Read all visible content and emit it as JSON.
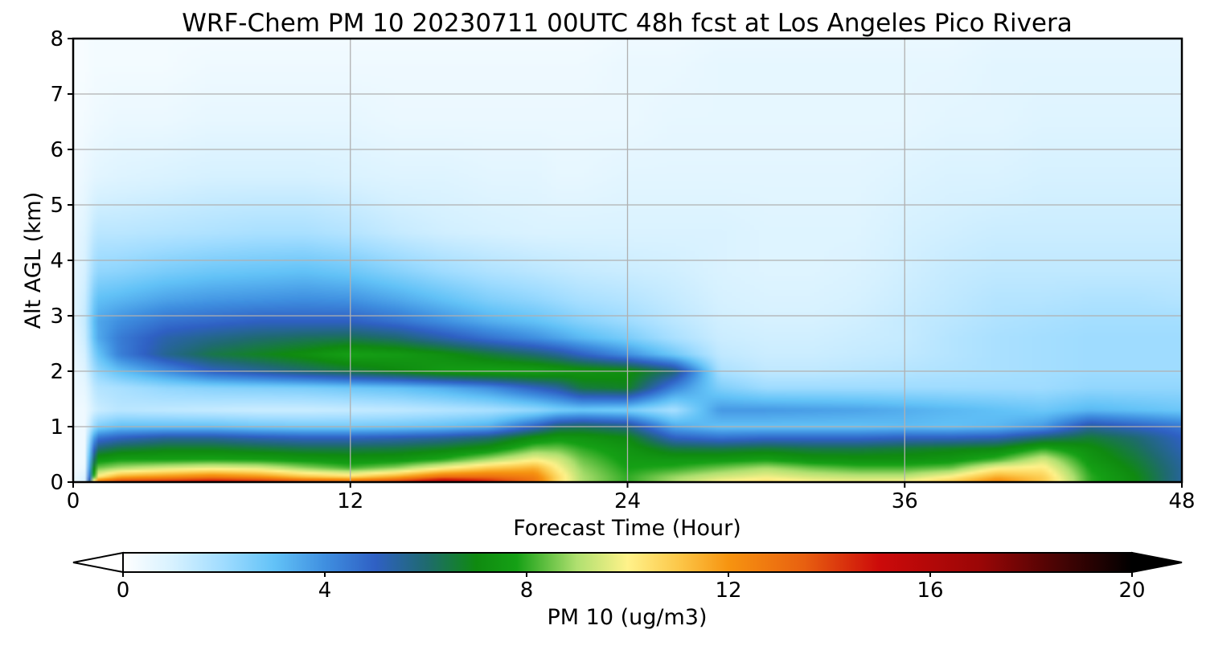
{
  "chart_data": {
    "type": "heatmap",
    "title": "WRF-Chem PM 10  20230711 00UTC 48h fcst at Los Angeles Pico Rivera",
    "xlabel": "Forecast Time (Hour)",
    "ylabel": "Alt AGL (km)",
    "xlim": [
      0,
      48
    ],
    "ylim": [
      0,
      8
    ],
    "xticks": [
      0,
      12,
      24,
      36,
      48
    ],
    "yticks": [
      0,
      1,
      2,
      3,
      4,
      5,
      6,
      7,
      8
    ],
    "grid": true,
    "colorbar": {
      "label": "PM 10  (ug/m3)",
      "range": [
        0,
        20
      ],
      "ticks": [
        0,
        4,
        8,
        12,
        16,
        20
      ],
      "extend": "both",
      "orientation": "horizontal",
      "placement": "bottom",
      "colors": [
        {
          "v": 0,
          "c": "#ffffff"
        },
        {
          "v": 1,
          "c": "#d6f1ff"
        },
        {
          "v": 2,
          "c": "#9fdcff"
        },
        {
          "v": 3,
          "c": "#62c2f7"
        },
        {
          "v": 4,
          "c": "#3f8fe0"
        },
        {
          "v": 5,
          "c": "#2f60c4"
        },
        {
          "v": 6,
          "c": "#1f6a70"
        },
        {
          "v": 7,
          "c": "#0f8a10"
        },
        {
          "v": 7.8,
          "c": "#15a015"
        },
        {
          "v": 9,
          "c": "#b0e070"
        },
        {
          "v": 10,
          "c": "#fff28a"
        },
        {
          "v": 11,
          "c": "#fcc84a"
        },
        {
          "v": 12,
          "c": "#f79410"
        },
        {
          "v": 13.5,
          "c": "#e86010"
        },
        {
          "v": 15,
          "c": "#cc0a0a"
        },
        {
          "v": 17,
          "c": "#9a0606"
        },
        {
          "v": 18.5,
          "c": "#4a0404"
        },
        {
          "v": 20,
          "c": "#000000"
        }
      ]
    },
    "grid_time_hours": [
      0,
      0.5,
      1,
      2,
      4,
      6,
      8,
      10,
      12,
      14,
      16,
      18,
      20,
      21,
      22,
      24,
      26,
      28,
      30,
      32,
      34,
      36,
      38,
      40,
      42,
      44,
      46,
      48
    ],
    "grid_alt_km": [
      0,
      0.1,
      0.25,
      0.4,
      0.6,
      0.8,
      1.0,
      1.3,
      1.7,
      2.0,
      2.3,
      2.6,
      2.9,
      3.3,
      3.8,
      4.5,
      5.5,
      6.5,
      7.5,
      8.0
    ],
    "values_by_time": [
      [
        0.5,
        0.4,
        0.3,
        0.3,
        0.3,
        0.3,
        0.3,
        0.3,
        0.4,
        0.4,
        0.5,
        0.6,
        0.7,
        0.7,
        0.6,
        0.5,
        0.3,
        0.2,
        0.2,
        0.2
      ],
      [
        1.0,
        0.8,
        0.5,
        0.4,
        0.4,
        0.4,
        0.4,
        0.4,
        0.6,
        0.8,
        1.0,
        1.2,
        1.3,
        1.2,
        1.0,
        0.8,
        0.5,
        0.3,
        0.2,
        0.2
      ],
      [
        13.0,
        10.0,
        8.5,
        7.5,
        6.0,
        4.5,
        2.5,
        1.2,
        1.6,
        2.2,
        2.8,
        3.4,
        3.5,
        3.0,
        2.2,
        1.5,
        0.7,
        0.4,
        0.3,
        0.3
      ],
      [
        14.5,
        11.5,
        9.0,
        7.8,
        6.5,
        5.0,
        3.0,
        1.5,
        1.8,
        3.0,
        4.3,
        4.4,
        4.0,
        3.2,
        2.3,
        1.5,
        0.8,
        0.5,
        0.3,
        0.3
      ],
      [
        15.0,
        12.0,
        9.5,
        7.8,
        6.8,
        5.5,
        3.0,
        1.4,
        2.2,
        4.0,
        5.6,
        5.3,
        4.6,
        3.6,
        2.6,
        1.6,
        0.9,
        0.5,
        0.3,
        0.3
      ],
      [
        15.5,
        12.5,
        9.8,
        7.9,
        6.8,
        5.5,
        3.0,
        1.3,
        2.4,
        5.0,
        6.4,
        5.7,
        4.8,
        3.8,
        2.8,
        1.7,
        1.0,
        0.6,
        0.4,
        0.3
      ],
      [
        15.0,
        12.0,
        9.6,
        7.8,
        6.6,
        5.2,
        2.8,
        1.2,
        2.5,
        5.5,
        6.8,
        6.0,
        5.0,
        3.9,
        2.9,
        1.8,
        1.0,
        0.6,
        0.4,
        0.3
      ],
      [
        14.0,
        11.0,
        8.8,
        7.6,
        6.4,
        5.0,
        2.7,
        1.2,
        2.6,
        6.0,
        7.2,
        6.2,
        5.0,
        4.0,
        3.0,
        1.8,
        1.0,
        0.6,
        0.4,
        0.3
      ],
      [
        13.5,
        10.5,
        8.2,
        7.4,
        6.4,
        5.0,
        2.7,
        1.3,
        2.8,
        6.5,
        7.8,
        6.3,
        5.0,
        3.9,
        2.8,
        1.6,
        0.9,
        0.6,
        0.4,
        0.3
      ],
      [
        14.5,
        11.5,
        8.8,
        7.5,
        6.5,
        5.2,
        2.8,
        1.4,
        3.0,
        7.0,
        7.6,
        6.0,
        4.6,
        3.5,
        2.4,
        1.3,
        0.8,
        0.5,
        0.4,
        0.3
      ],
      [
        16.5,
        13.0,
        10.0,
        8.0,
        6.8,
        5.5,
        3.0,
        1.6,
        3.4,
        7.6,
        7.2,
        5.3,
        4.0,
        3.0,
        2.0,
        1.1,
        0.8,
        0.5,
        0.4,
        0.3
      ],
      [
        15.0,
        13.0,
        11.0,
        9.0,
        7.3,
        6.0,
        3.4,
        1.8,
        4.0,
        7.8,
        6.6,
        4.6,
        3.4,
        2.5,
        1.7,
        1.0,
        0.7,
        0.5,
        0.4,
        0.3
      ],
      [
        13.0,
        12.5,
        11.5,
        10.0,
        8.5,
        7.2,
        5.0,
        2.2,
        5.0,
        7.8,
        6.0,
        4.0,
        3.0,
        2.2,
        1.5,
        0.9,
        0.7,
        0.5,
        0.4,
        0.3
      ],
      [
        10.5,
        10.5,
        10.0,
        9.5,
        8.5,
        7.5,
        6.0,
        2.6,
        5.5,
        7.6,
        5.6,
        3.6,
        2.7,
        2.0,
        1.4,
        0.9,
        0.6,
        0.5,
        0.4,
        0.3
      ],
      [
        9.0,
        9.0,
        8.8,
        8.5,
        8.0,
        7.4,
        6.2,
        2.8,
        6.5,
        7.4,
        5.0,
        3.2,
        2.4,
        1.8,
        1.3,
        0.9,
        0.6,
        0.5,
        0.4,
        0.3
      ],
      [
        8.0,
        8.0,
        7.8,
        7.6,
        7.4,
        7.0,
        5.8,
        2.6,
        6.8,
        7.2,
        4.0,
        2.6,
        2.0,
        1.6,
        1.2,
        0.9,
        0.7,
        0.5,
        0.5,
        0.4
      ],
      [
        9.0,
        8.8,
        8.0,
        7.5,
        6.5,
        5.0,
        3.5,
        1.8,
        4.2,
        6.0,
        2.8,
        1.8,
        1.5,
        1.3,
        1.1,
        0.9,
        0.7,
        0.6,
        0.5,
        0.4
      ],
      [
        10.0,
        9.4,
        8.5,
        7.6,
        6.4,
        4.6,
        3.0,
        3.8,
        2.5,
        1.8,
        1.4,
        1.2,
        1.1,
        1.0,
        0.9,
        0.9,
        0.7,
        0.6,
        0.6,
        0.5
      ],
      [
        10.5,
        9.8,
        9.0,
        7.8,
        6.6,
        4.8,
        3.0,
        3.8,
        2.0,
        1.4,
        1.2,
        1.1,
        1.0,
        0.9,
        0.8,
        0.8,
        0.7,
        0.6,
        0.6,
        0.5
      ],
      [
        10.0,
        9.4,
        8.5,
        7.4,
        6.4,
        4.8,
        3.0,
        3.7,
        2.0,
        1.4,
        1.2,
        1.1,
        1.0,
        0.9,
        0.8,
        0.8,
        0.7,
        0.6,
        0.6,
        0.5
      ],
      [
        9.8,
        9.2,
        8.2,
        7.3,
        6.4,
        4.8,
        3.0,
        3.6,
        2.0,
        1.5,
        1.3,
        1.2,
        1.1,
        1.0,
        0.9,
        0.8,
        0.7,
        0.6,
        0.6,
        0.5
      ],
      [
        10.0,
        9.2,
        8.2,
        7.3,
        6.6,
        5.0,
        3.1,
        3.4,
        2.0,
        1.6,
        1.4,
        1.3,
        1.3,
        1.2,
        1.1,
        1.0,
        0.8,
        0.6,
        0.6,
        0.5
      ],
      [
        11.0,
        10.0,
        8.5,
        7.5,
        6.8,
        5.0,
        3.0,
        3.2,
        2.0,
        1.7,
        1.6,
        1.6,
        1.5,
        1.4,
        1.3,
        1.1,
        0.9,
        0.7,
        0.6,
        0.5
      ],
      [
        12.5,
        11.5,
        10.0,
        8.2,
        7.0,
        5.2,
        3.2,
        3.0,
        2.0,
        1.8,
        1.8,
        1.8,
        1.7,
        1.6,
        1.4,
        1.2,
        0.9,
        0.7,
        0.7,
        0.6
      ],
      [
        11.0,
        10.8,
        10.2,
        9.5,
        8.0,
        6.0,
        3.8,
        2.8,
        2.0,
        1.9,
        1.9,
        1.9,
        1.8,
        1.6,
        1.4,
        1.2,
        1.0,
        0.8,
        0.7,
        0.6
      ],
      [
        8.0,
        8.0,
        7.8,
        7.5,
        7.2,
        6.6,
        5.5,
        3.2,
        2.2,
        2.0,
        2.0,
        2.0,
        1.9,
        1.7,
        1.4,
        1.2,
        1.0,
        0.8,
        0.7,
        0.6
      ],
      [
        7.0,
        7.0,
        6.8,
        6.6,
        6.3,
        6.0,
        5.0,
        3.0,
        2.2,
        2.0,
        2.0,
        2.0,
        1.9,
        1.7,
        1.4,
        1.2,
        1.0,
        0.8,
        0.7,
        0.6
      ],
      [
        5.5,
        5.5,
        5.5,
        5.4,
        5.2,
        5.0,
        4.5,
        2.8,
        2.2,
        2.0,
        2.0,
        2.0,
        1.9,
        1.6,
        1.4,
        1.2,
        1.0,
        0.8,
        0.7,
        0.6
      ]
    ]
  }
}
